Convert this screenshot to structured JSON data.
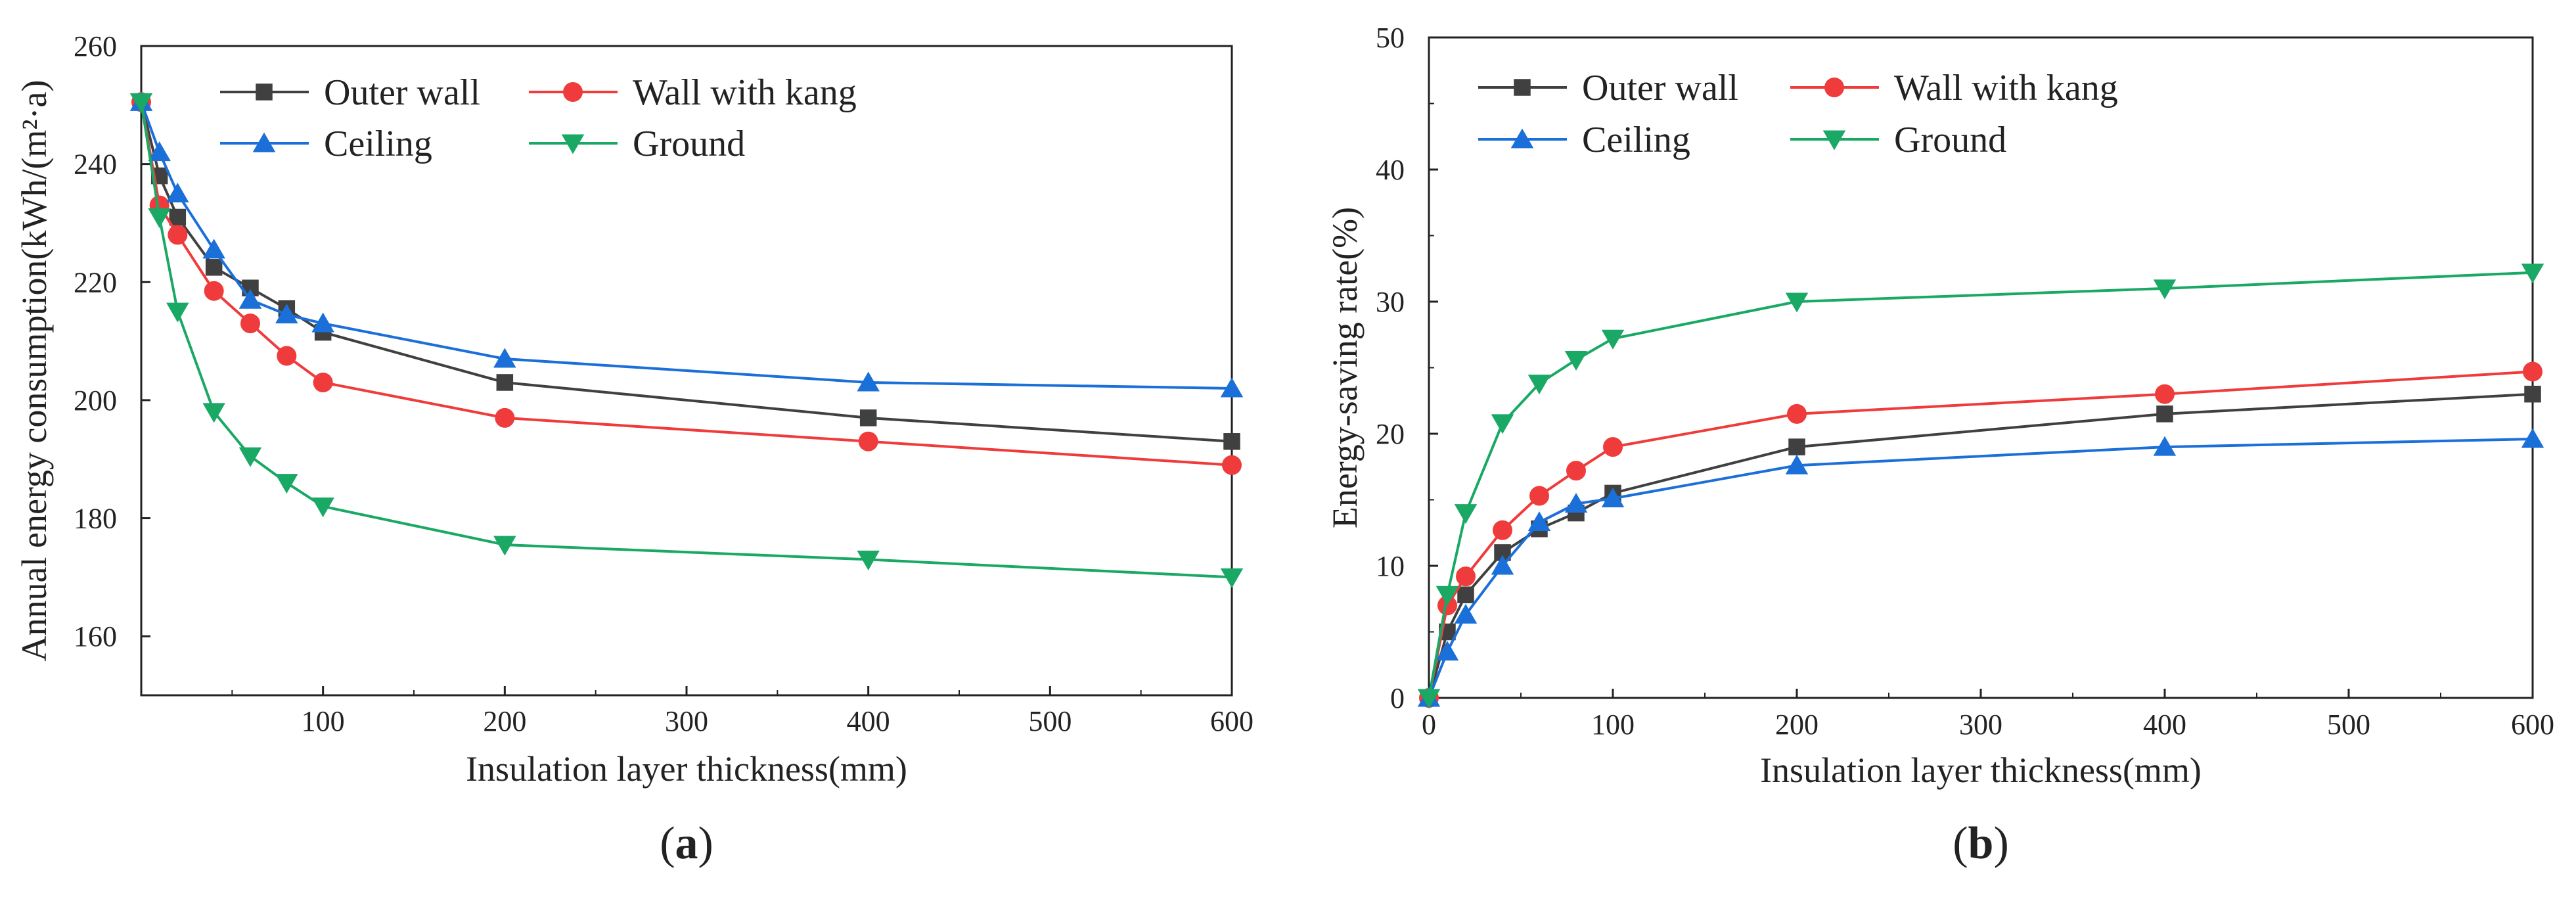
{
  "chart_data": [
    {
      "type": "line",
      "panel_label": "(a)",
      "panel_letter": "a",
      "title": "",
      "xlabel": "Insulation layer thickness(mm)",
      "ylabel": "Annual energy consumption(kWh/(m²·a)",
      "xlim": [
        0,
        600
      ],
      "ylim": [
        150,
        260
      ],
      "xticks": [
        100,
        200,
        300,
        400,
        500,
        600
      ],
      "xtick_labels": [
        "100",
        "200",
        "300",
        "400",
        "500",
        "600"
      ],
      "yticks": [
        160,
        180,
        200,
        220,
        240,
        260
      ],
      "ytick_labels": [
        "160",
        "180",
        "200",
        "220",
        "240",
        "260"
      ],
      "grid": false,
      "legend_position": "top-left",
      "x": [
        0,
        10,
        20,
        40,
        60,
        80,
        100,
        200,
        400,
        600
      ],
      "series": [
        {
          "name": "Outer wall",
          "color": "#404040",
          "marker": "square",
          "values": [
            250.5,
            238,
            231,
            222.5,
            219,
            215.5,
            211.5,
            203,
            197,
            193
          ]
        },
        {
          "name": "Wall with kang",
          "color": "#ef3b3b",
          "marker": "circle",
          "values": [
            250.5,
            233,
            228,
            218.5,
            213,
            207.5,
            203,
            197,
            193,
            189
          ]
        },
        {
          "name": "Ceiling",
          "color": "#1b6fd8",
          "marker": "triangle-up",
          "values": [
            250.5,
            242,
            235,
            225.5,
            217,
            214.5,
            213,
            207,
            203,
            202
          ]
        },
        {
          "name": "Ground",
          "color": "#1aa865",
          "marker": "triangle-down",
          "values": [
            250.5,
            231,
            215,
            198,
            190.5,
            186,
            182,
            175.5,
            173,
            170
          ]
        }
      ]
    },
    {
      "type": "line",
      "panel_label": "(b)",
      "panel_letter": "b",
      "title": "",
      "xlabel": "Insulation layer thickness(mm)",
      "ylabel": "Energy-saving rate(%)",
      "xlim": [
        0,
        600
      ],
      "ylim": [
        0,
        50
      ],
      "xticks": [
        0,
        100,
        200,
        300,
        400,
        500,
        600
      ],
      "xtick_labels": [
        "0",
        "100",
        "200",
        "300",
        "400",
        "500",
        "600"
      ],
      "yticks": [
        0,
        10,
        20,
        30,
        40,
        50
      ],
      "ytick_labels": [
        "0",
        "10",
        "20",
        "30",
        "40",
        "50"
      ],
      "grid": false,
      "legend_position": "top-left",
      "x": [
        0,
        10,
        20,
        40,
        60,
        80,
        100,
        200,
        400,
        600
      ],
      "series": [
        {
          "name": "Outer wall",
          "color": "#404040",
          "marker": "square",
          "values": [
            0,
            5,
            7.8,
            11,
            12.8,
            14,
            15.5,
            19,
            21.5,
            23
          ]
        },
        {
          "name": "Wall with kang",
          "color": "#ef3b3b",
          "marker": "circle",
          "values": [
            0,
            7,
            9.2,
            12.7,
            15.3,
            17.2,
            19,
            21.5,
            23,
            24.7
          ]
        },
        {
          "name": "Ceiling",
          "color": "#1b6fd8",
          "marker": "triangle-up",
          "values": [
            0,
            3.5,
            6.3,
            10,
            13.3,
            14.7,
            15.1,
            17.6,
            19,
            19.6
          ]
        },
        {
          "name": "Ground",
          "color": "#1aa865",
          "marker": "triangle-down",
          "values": [
            0,
            7.8,
            14,
            20.8,
            23.8,
            25.6,
            27.2,
            30,
            31,
            32.2
          ]
        }
      ]
    }
  ]
}
